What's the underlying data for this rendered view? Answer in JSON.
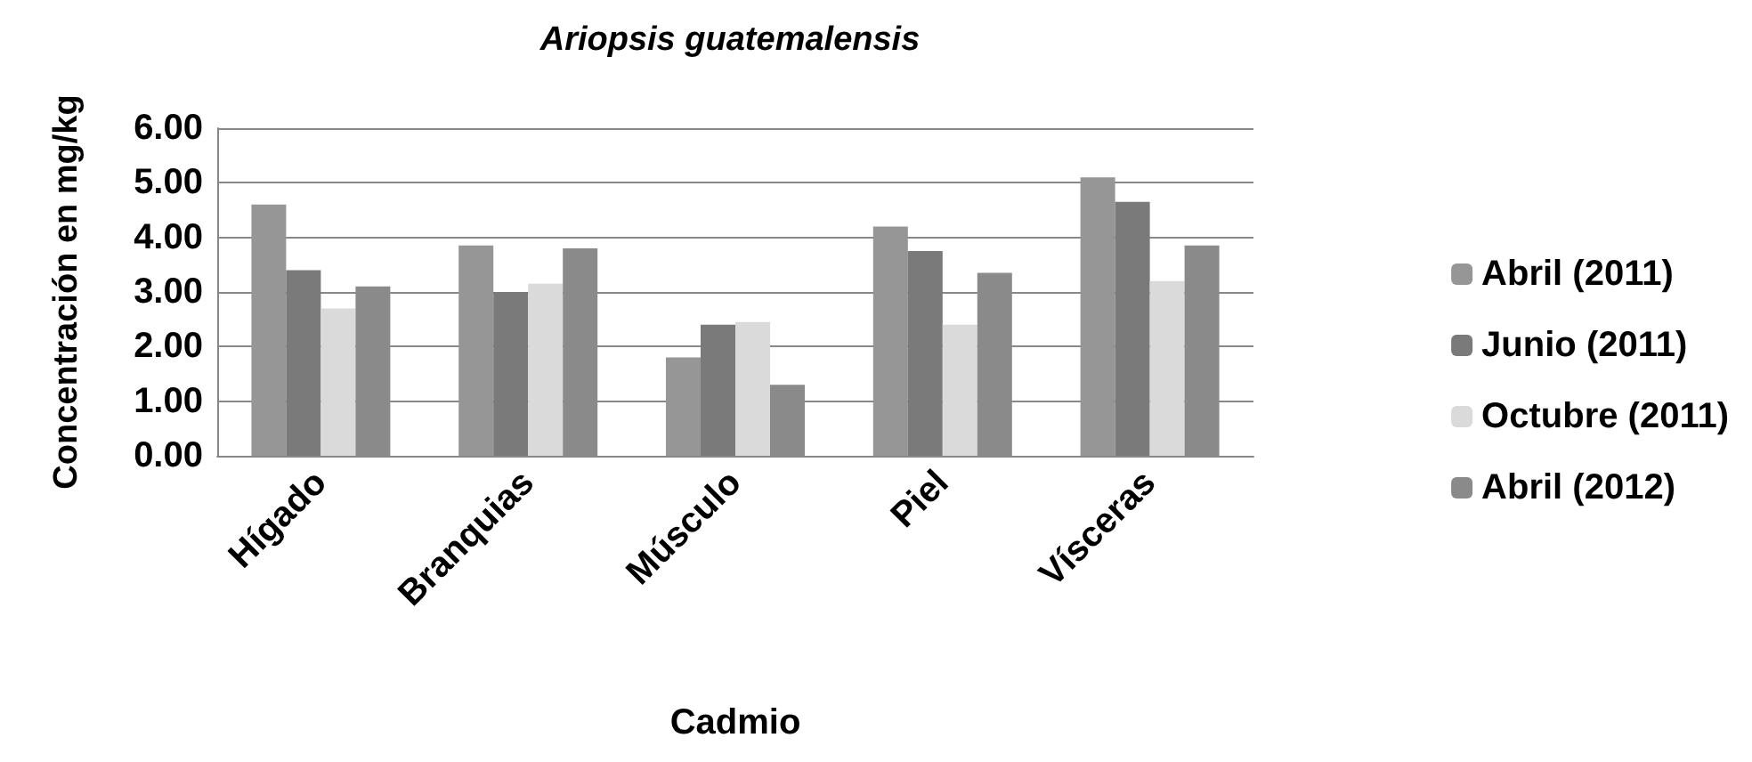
{
  "chart_data": {
    "type": "bar",
    "title": "Ariopsis guatemalensis",
    "xlabel": "Cadmio",
    "ylabel": "Concentración en mg/kg",
    "categories": [
      "Hígado",
      "Branquias",
      "Músculo",
      "Piel",
      "Vísceras"
    ],
    "series": [
      {
        "name": "Abril (2011)",
        "color": "#969696",
        "values": [
          4.6,
          3.85,
          1.8,
          4.2,
          5.1
        ]
      },
      {
        "name": "Junio (2011)",
        "color": "#7a7a7a",
        "values": [
          3.4,
          3.0,
          2.4,
          3.75,
          4.65
        ]
      },
      {
        "name": "Octubre (2011)",
        "color": "#dadada",
        "values": [
          2.7,
          3.15,
          2.45,
          2.4,
          3.2
        ]
      },
      {
        "name": "Abril (2012)",
        "color": "#8a8a8a",
        "values": [
          3.1,
          3.8,
          1.3,
          3.35,
          3.85
        ]
      }
    ],
    "ylim": [
      0,
      6
    ],
    "yticks": [
      {
        "value": 0,
        "label": "0.00"
      },
      {
        "value": 1,
        "label": "1.00"
      },
      {
        "value": 2,
        "label": "2.00"
      },
      {
        "value": 3,
        "label": "3.00"
      },
      {
        "value": 4,
        "label": "4.00"
      },
      {
        "value": 5,
        "label": "5.00"
      },
      {
        "value": 6,
        "label": "6.00"
      }
    ],
    "grid": "y",
    "legend": "right"
  }
}
